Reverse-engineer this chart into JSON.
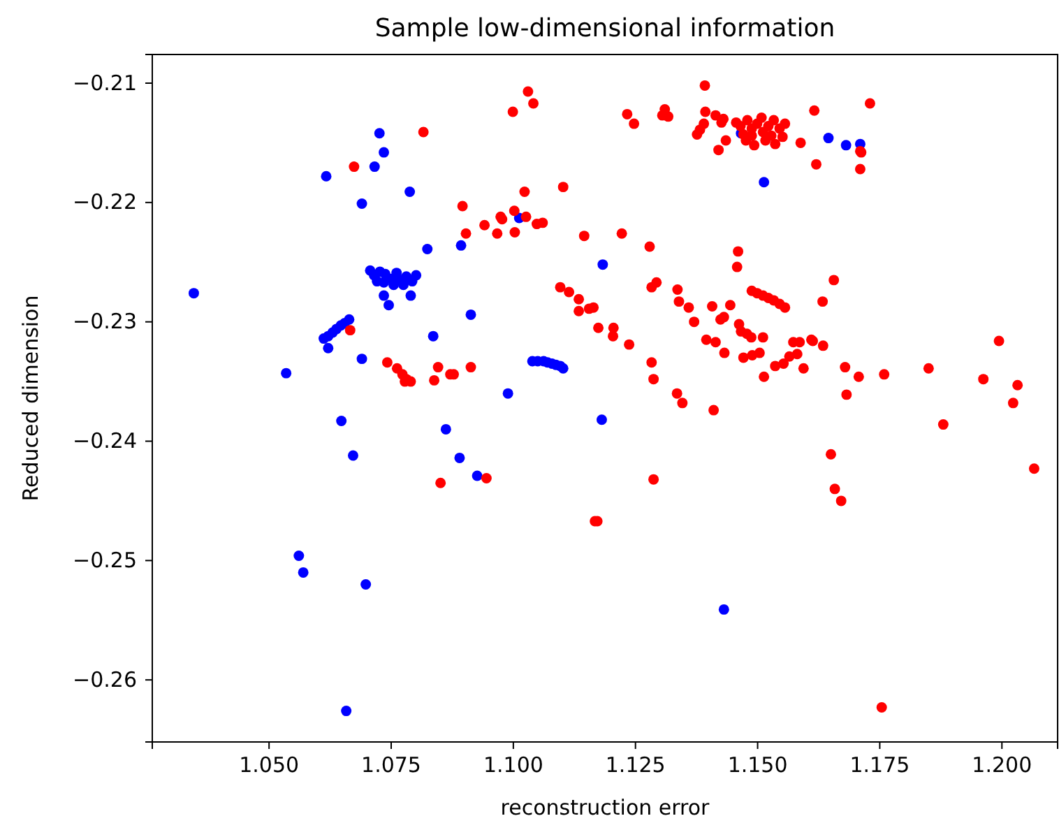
{
  "chart_data": {
    "type": "scatter",
    "title": "Sample low-dimensional information",
    "xlabel": "reconstruction error",
    "ylabel": "Reduced dimension",
    "marker": "circle",
    "xlim": [
      1.0261,
      1.2114
    ],
    "ylim": [
      -0.2652,
      -0.2076
    ],
    "xticks": [
      {
        "value": 1.05,
        "label": "1.050"
      },
      {
        "value": 1.075,
        "label": "1.075"
      },
      {
        "value": 1.1,
        "label": "1.100"
      },
      {
        "value": 1.125,
        "label": "1.125"
      },
      {
        "value": 1.15,
        "label": "1.150"
      },
      {
        "value": 1.175,
        "label": "1.175"
      },
      {
        "value": 1.2,
        "label": "1.200"
      }
    ],
    "yticks": [
      {
        "value": -0.21,
        "label": "−0.21"
      },
      {
        "value": -0.22,
        "label": "−0.22"
      },
      {
        "value": -0.23,
        "label": "−0.23"
      },
      {
        "value": -0.24,
        "label": "−0.24"
      },
      {
        "value": -0.25,
        "label": "−0.25"
      },
      {
        "value": -0.26,
        "label": "−0.26"
      }
    ],
    "series": [
      {
        "color": "#0000ff",
        "x": [
          1.0726,
          1.0735,
          1.0716,
          1.0617,
          1.069,
          1.0788,
          1.0824,
          1.0893,
          1.0707,
          1.0715,
          1.0727,
          1.0738,
          1.075,
          1.0761,
          1.077,
          1.0781,
          1.0793,
          1.0801,
          1.0735,
          1.0755,
          1.0775,
          1.0721,
          1.079,
          1.0735,
          1.0745,
          1.0346,
          1.0612,
          1.0621,
          1.063,
          1.0638,
          1.0647,
          1.0655,
          1.0664,
          1.0621,
          1.0836,
          1.069,
          1.0535,
          1.0648,
          1.0672,
          1.0862,
          1.089,
          1.0561,
          1.057,
          1.0698,
          1.0658,
          1.1012,
          1.1183,
          1.0913,
          1.1039,
          1.105,
          1.1062,
          1.107,
          1.1079,
          1.1087,
          1.1096,
          1.1102,
          1.0989,
          1.1466,
          1.1513,
          1.0926,
          1.1181,
          1.1431,
          1.1645,
          1.1681,
          1.171
        ],
        "values": [
          -0.2142,
          -0.2158,
          -0.217,
          -0.2178,
          -0.2201,
          -0.2191,
          -0.2239,
          -0.2236,
          -0.2257,
          -0.2261,
          -0.2258,
          -0.226,
          -0.2264,
          -0.2259,
          -0.2265,
          -0.2262,
          -0.2266,
          -0.2261,
          -0.2267,
          -0.2269,
          -0.2269,
          -0.2266,
          -0.2278,
          -0.2278,
          -0.2286,
          -0.2276,
          -0.2314,
          -0.2312,
          -0.2309,
          -0.2306,
          -0.2303,
          -0.2301,
          -0.2298,
          -0.2322,
          -0.2312,
          -0.2331,
          -0.2343,
          -0.2383,
          -0.2412,
          -0.239,
          -0.2414,
          -0.2496,
          -0.251,
          -0.252,
          -0.2626,
          -0.2213,
          -0.2252,
          -0.2294,
          -0.2333,
          -0.2333,
          -0.2333,
          -0.2334,
          -0.2335,
          -0.2336,
          -0.2337,
          -0.2339,
          -0.236,
          -0.2142,
          -0.2183,
          -0.2429,
          -0.2382,
          -0.2541,
          -0.2146,
          -0.2152,
          -0.2151
        ]
      },
      {
        "color": "#ff0000",
        "x": [
          1.0816,
          1.0674,
          1.0896,
          1.0666,
          1.0742,
          1.0762,
          1.0773,
          1.0781,
          1.079,
          1.0778,
          1.0846,
          1.0838,
          1.0871,
          1.0851,
          1.103,
          1.1041,
          1.0999,
          1.1392,
          1.1233,
          1.1247,
          1.131,
          1.1305,
          1.1317,
          1.1393,
          1.1414,
          1.143,
          1.1426,
          1.139,
          1.1382,
          1.1376,
          1.1456,
          1.1435,
          1.142,
          1.1465,
          1.1479,
          1.1488,
          1.1499,
          1.1511,
          1.1522,
          1.1533,
          1.1545,
          1.1556,
          1.1476,
          1.1493,
          1.1516,
          1.1536,
          1.1551,
          1.1471,
          1.1508,
          1.1528,
          1.1488,
          1.1023,
          1.1102,
          1.1002,
          1.0974,
          1.0977,
          1.1026,
          1.0941,
          1.0903,
          1.0967,
          1.1003,
          1.1048,
          1.106,
          1.1145,
          1.1222,
          1.1279,
          1.146,
          1.1458,
          1.1096,
          1.1114,
          1.1134,
          1.1134,
          1.1155,
          1.1164,
          1.1174,
          1.1205,
          1.1204,
          1.1237,
          1.1283,
          1.1293,
          1.1336,
          1.1339,
          1.1359,
          1.137,
          1.1407,
          1.1444,
          1.1424,
          1.1431,
          1.1395,
          1.1414,
          1.1432,
          1.1462,
          1.1466,
          1.1478,
          1.1487,
          1.1471,
          1.1489,
          1.1504,
          1.1488,
          1.1499,
          1.1511,
          1.1522,
          1.1533,
          1.1545,
          1.1556,
          1.1511,
          1.0913,
          1.0878,
          1.1283,
          1.1287,
          1.1513,
          1.1335,
          1.1346,
          1.141,
          1.0945,
          1.1287,
          1.1172,
          1.1167,
          1.1616,
          1.173,
          1.1588,
          1.162,
          1.171,
          1.1712,
          1.171,
          1.1656,
          1.1633,
          1.1573,
          1.1586,
          1.161,
          1.1613,
          1.1634,
          1.1581,
          1.1565,
          1.1553,
          1.1536,
          1.1594,
          1.1679,
          1.1707,
          1.1759,
          1.1682,
          1.185,
          1.1962,
          1.1994,
          1.2032,
          1.2023,
          1.188,
          1.165,
          1.1658,
          1.1671,
          1.2066,
          1.1754
        ],
        "values": [
          -0.2141,
          -0.217,
          -0.2203,
          -0.2307,
          -0.2334,
          -0.2339,
          -0.2344,
          -0.2348,
          -0.235,
          -0.235,
          -0.2338,
          -0.2349,
          -0.2344,
          -0.2435,
          -0.2107,
          -0.2117,
          -0.2124,
          -0.2102,
          -0.2126,
          -0.2134,
          -0.2122,
          -0.2127,
          -0.2128,
          -0.2124,
          -0.2127,
          -0.213,
          -0.2133,
          -0.2134,
          -0.2139,
          -0.2143,
          -0.2133,
          -0.2148,
          -0.2156,
          -0.2136,
          -0.2131,
          -0.2138,
          -0.2134,
          -0.2141,
          -0.2136,
          -0.2131,
          -0.2138,
          -0.2134,
          -0.2148,
          -0.2152,
          -0.2148,
          -0.2151,
          -0.2145,
          -0.2143,
          -0.2129,
          -0.2144,
          -0.2144,
          -0.2191,
          -0.2187,
          -0.2207,
          -0.2212,
          -0.2214,
          -0.2212,
          -0.2219,
          -0.2226,
          -0.2226,
          -0.2225,
          -0.2218,
          -0.2217,
          -0.2228,
          -0.2226,
          -0.2237,
          -0.2241,
          -0.2254,
          -0.2271,
          -0.2275,
          -0.2281,
          -0.2291,
          -0.2289,
          -0.2288,
          -0.2305,
          -0.2305,
          -0.2312,
          -0.2319,
          -0.2271,
          -0.2267,
          -0.2273,
          -0.2283,
          -0.2288,
          -0.23,
          -0.2287,
          -0.2286,
          -0.2298,
          -0.2296,
          -0.2315,
          -0.2317,
          -0.2326,
          -0.2302,
          -0.2308,
          -0.231,
          -0.2313,
          -0.233,
          -0.2328,
          -0.2326,
          -0.2274,
          -0.2276,
          -0.2278,
          -0.228,
          -0.2282,
          -0.2285,
          -0.2288,
          -0.2313,
          -0.2338,
          -0.2344,
          -0.2334,
          -0.2348,
          -0.2346,
          -0.236,
          -0.2368,
          -0.2374,
          -0.2431,
          -0.2432,
          -0.2467,
          -0.2467,
          -0.2123,
          -0.2117,
          -0.215,
          -0.2168,
          -0.2157,
          -0.2158,
          -0.2172,
          -0.2265,
          -0.2283,
          -0.2317,
          -0.2317,
          -0.2315,
          -0.2316,
          -0.232,
          -0.2327,
          -0.2329,
          -0.2335,
          -0.2337,
          -0.2339,
          -0.2338,
          -0.2346,
          -0.2344,
          -0.2361,
          -0.2339,
          -0.2348,
          -0.2316,
          -0.2353,
          -0.2368,
          -0.2386,
          -0.2411,
          -0.244,
          -0.245,
          -0.2423,
          -0.2623
        ]
      }
    ]
  }
}
